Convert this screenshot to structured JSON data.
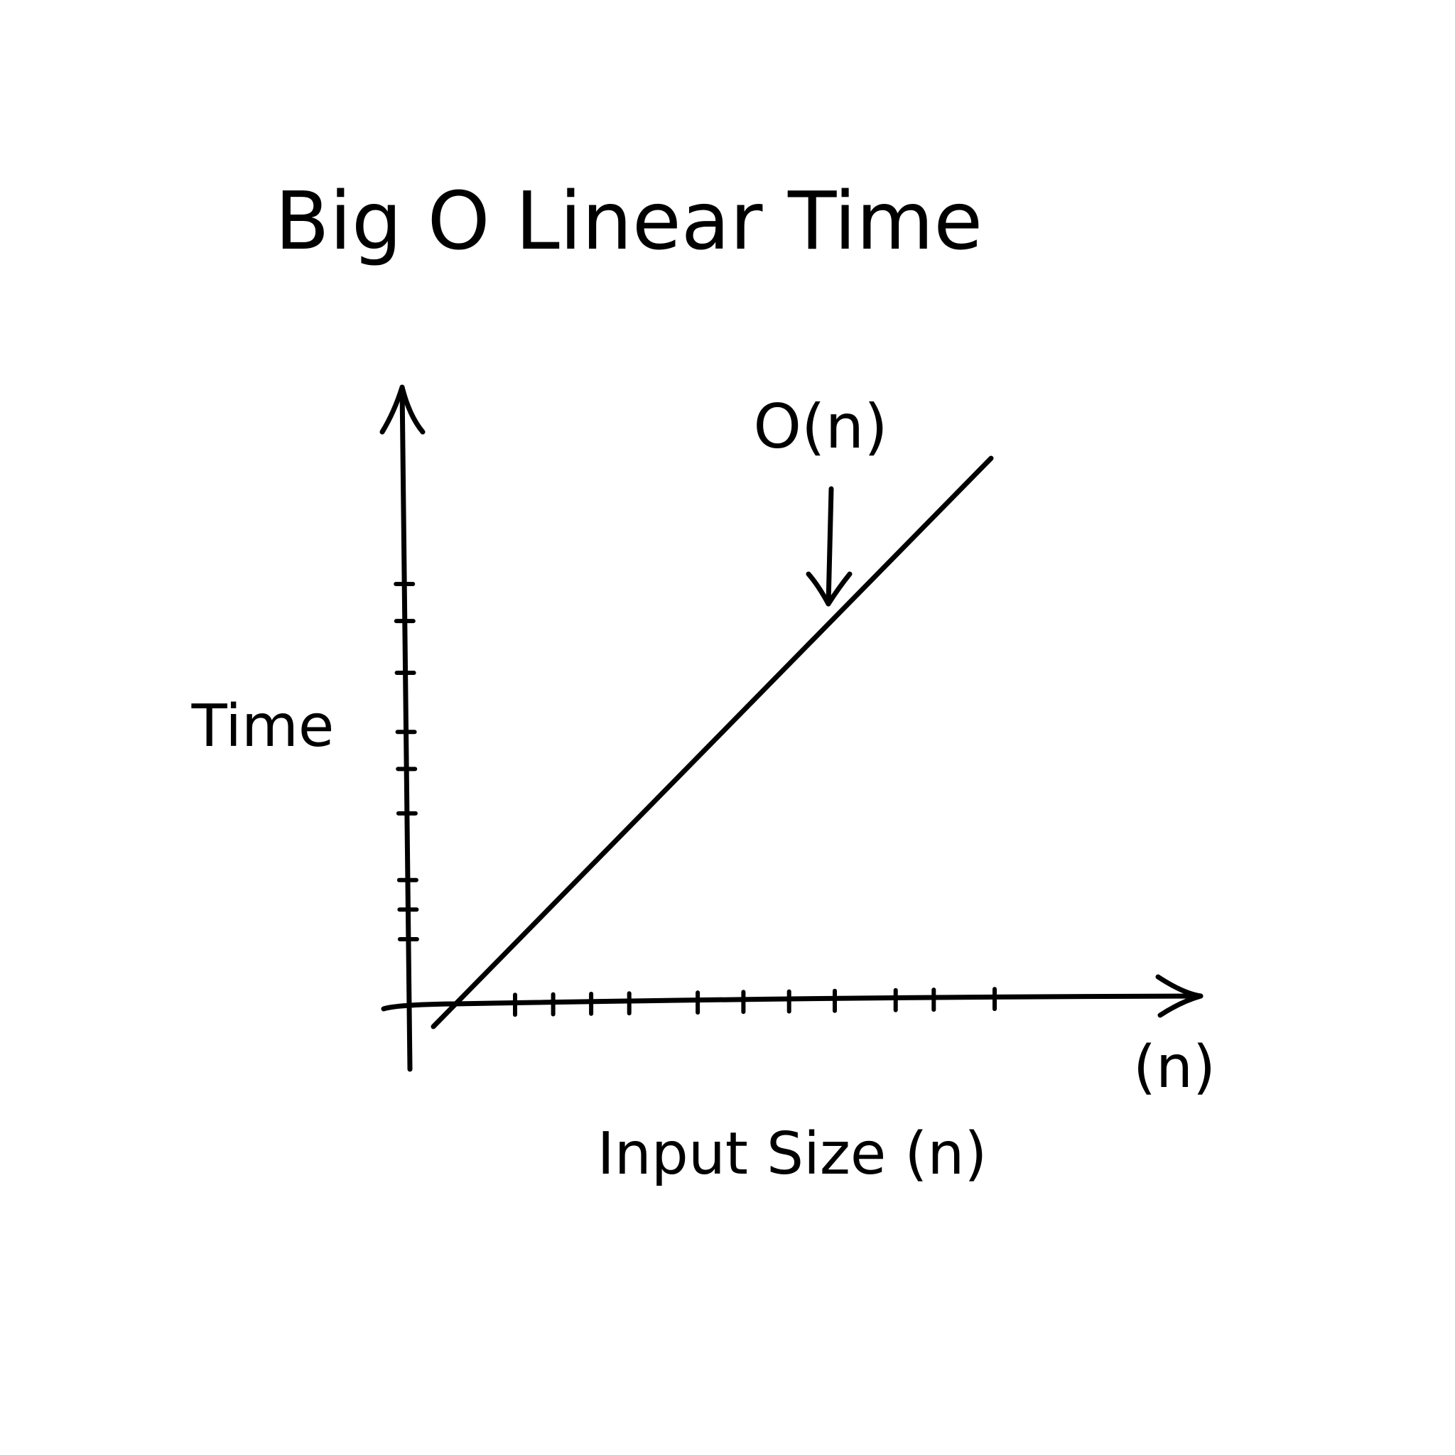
{
  "chart_data": {
    "type": "line",
    "title": "Big O Linear Time",
    "xlabel": "Input Size (n)",
    "ylabel": "Time",
    "x_axis_end_label": "(n)",
    "series": [
      {
        "name": "O(n)",
        "x": [
          0,
          10
        ],
        "y": [
          0,
          10
        ]
      }
    ],
    "annotation": {
      "text": "O(n)",
      "points_to": {
        "x": 6.5,
        "y": 6.5
      }
    },
    "x_ticks": [
      1,
      1.5,
      2,
      2.5,
      3.4,
      4,
      4.6,
      5.2,
      6,
      6.5,
      7.3
    ],
    "y_ticks": [
      1,
      1.4,
      1.8,
      2.7,
      3.3,
      3.8,
      4.6,
      5.3,
      5.8
    ],
    "xlim": [
      0,
      10
    ],
    "ylim": [
      0,
      10
    ],
    "grid": false,
    "legend": "none",
    "colors": {
      "ink": "#000000",
      "background": "#ffffff"
    }
  }
}
